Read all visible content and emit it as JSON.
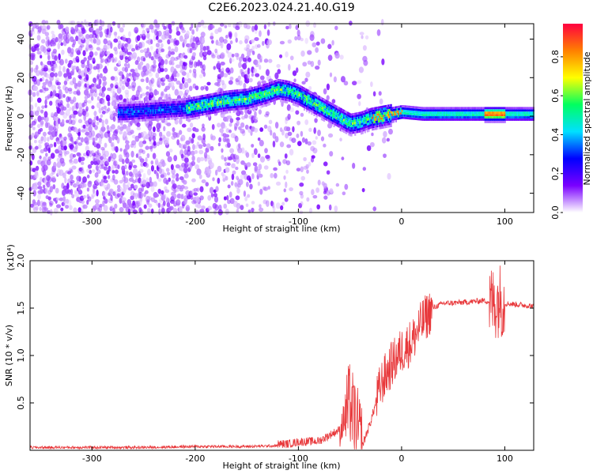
{
  "page": {
    "title": "C2E6.2023.024.21.40.G19"
  },
  "chart_data": [
    {
      "type": "heatmap",
      "xlabel": "Height of straight line (km)",
      "ylabel": "Frequency (Hz)",
      "xlim": [
        -360,
        128
      ],
      "ylim": [
        -50,
        48
      ],
      "xticks": [
        -300,
        -200,
        -100,
        0,
        100
      ],
      "yticks": [
        -40,
        -20,
        0,
        20,
        40
      ],
      "colorbar": {
        "label": "Normalized spectral amplitude",
        "range": [
          0,
          0.97
        ],
        "ticks": [
          "0.0",
          "0.2",
          "0.4",
          "0.6",
          "0.8"
        ],
        "colors": [
          "#ffffff",
          "#7a00ff",
          "#0000ff",
          "#00e0ff",
          "#00ff60",
          "#ffff00",
          "#ff8000",
          "#ff0040"
        ]
      },
      "ridge": {
        "x": [
          -270,
          -240,
          -210,
          -190,
          -170,
          -150,
          -130,
          -120,
          -110,
          -100,
          -90,
          -80,
          -70,
          -60,
          -50,
          -40,
          -30,
          -20,
          -10,
          0,
          20,
          50,
          80,
          100,
          128
        ],
        "y": [
          2,
          3,
          4,
          6,
          8,
          9,
          12,
          14,
          13,
          11,
          8,
          5,
          2,
          -1,
          -4,
          -3,
          -1,
          0,
          1,
          2,
          1,
          1,
          1,
          1,
          1
        ]
      }
    },
    {
      "type": "line",
      "xlabel": "Height of straight line (km)",
      "ylabel": "SNR (10 * v/v)",
      "scale_label": "(x10⁴)",
      "xlim": [
        -360,
        128
      ],
      "ylim": [
        0,
        2.0
      ],
      "xticks": [
        -300,
        -200,
        -100,
        0,
        100
      ],
      "yticks": [
        "0.5",
        "1.0",
        "1.5",
        "2.0"
      ],
      "series_color": "#e8383b",
      "profile": {
        "x": [
          -360,
          -250,
          -200,
          -150,
          -110,
          -100,
          -80,
          -60,
          -50,
          -45,
          -38,
          -30,
          -20,
          -10,
          0,
          10,
          20,
          30,
          40,
          60,
          80,
          90,
          95,
          100,
          110,
          128
        ],
        "y": [
          0.03,
          0.03,
          0.04,
          0.04,
          0.05,
          0.07,
          0.08,
          0.2,
          0.5,
          0.3,
          0.05,
          0.3,
          0.7,
          0.9,
          1.05,
          1.15,
          1.35,
          1.5,
          1.55,
          1.56,
          1.58,
          1.55,
          1.6,
          1.55,
          1.54,
          1.52
        ]
      }
    }
  ]
}
